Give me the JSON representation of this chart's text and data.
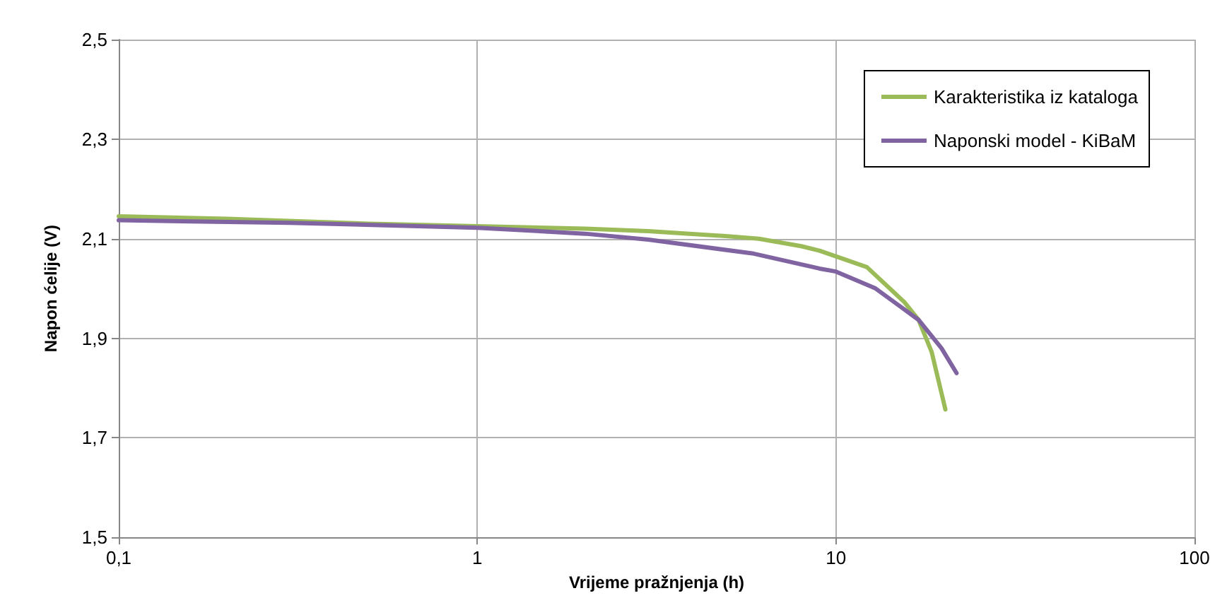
{
  "chart_data": {
    "type": "line",
    "xlabel": "Vrijeme pražnjenja (h)",
    "ylabel": "Napon ćelije (V)",
    "log": "x",
    "xlim": [
      0.1,
      100
    ],
    "xticks": [
      {
        "value": 0.1,
        "label": "0,1"
      },
      1,
      10,
      100
    ],
    "ylim": [
      1.5,
      2.5
    ],
    "yticks": [
      {
        "value": 1.5,
        "label": "1,5"
      },
      {
        "value": 1.7,
        "label": "1,7"
      },
      {
        "value": 1.9,
        "label": "1,9"
      },
      {
        "value": 2.1,
        "label": "2,1"
      },
      {
        "value": 2.3,
        "label": "2,3"
      },
      {
        "value": 2.5,
        "label": "2,5"
      }
    ],
    "grid": true,
    "legend": "top right",
    "marker": "none",
    "line_style": "solid",
    "series": [
      {
        "name": "Karakteristika iz kataloga",
        "color": "#9bbb59",
        "x": [
          0.1,
          0.2,
          0.5,
          1,
          2,
          3,
          5,
          6.1,
          8,
          9,
          12.2,
          15.5,
          17,
          18.5,
          20.2
        ],
        "values": [
          2.145,
          2.14,
          2.13,
          2.125,
          2.12,
          2.115,
          2.105,
          2.1,
          2.085,
          2.076,
          2.043,
          1.973,
          1.937,
          1.872,
          1.757
        ]
      },
      {
        "name": "Naponski model - KiBaM",
        "color": "#8064a2",
        "x": [
          0.1,
          0.3,
          1,
          2,
          3,
          5.9,
          9,
          10,
          12.9,
          17,
          19.7,
          21.7
        ],
        "values": [
          2.137,
          2.132,
          2.122,
          2.11,
          2.098,
          2.07,
          2.04,
          2.034,
          2.0,
          1.937,
          1.88,
          1.83
        ]
      }
    ]
  }
}
